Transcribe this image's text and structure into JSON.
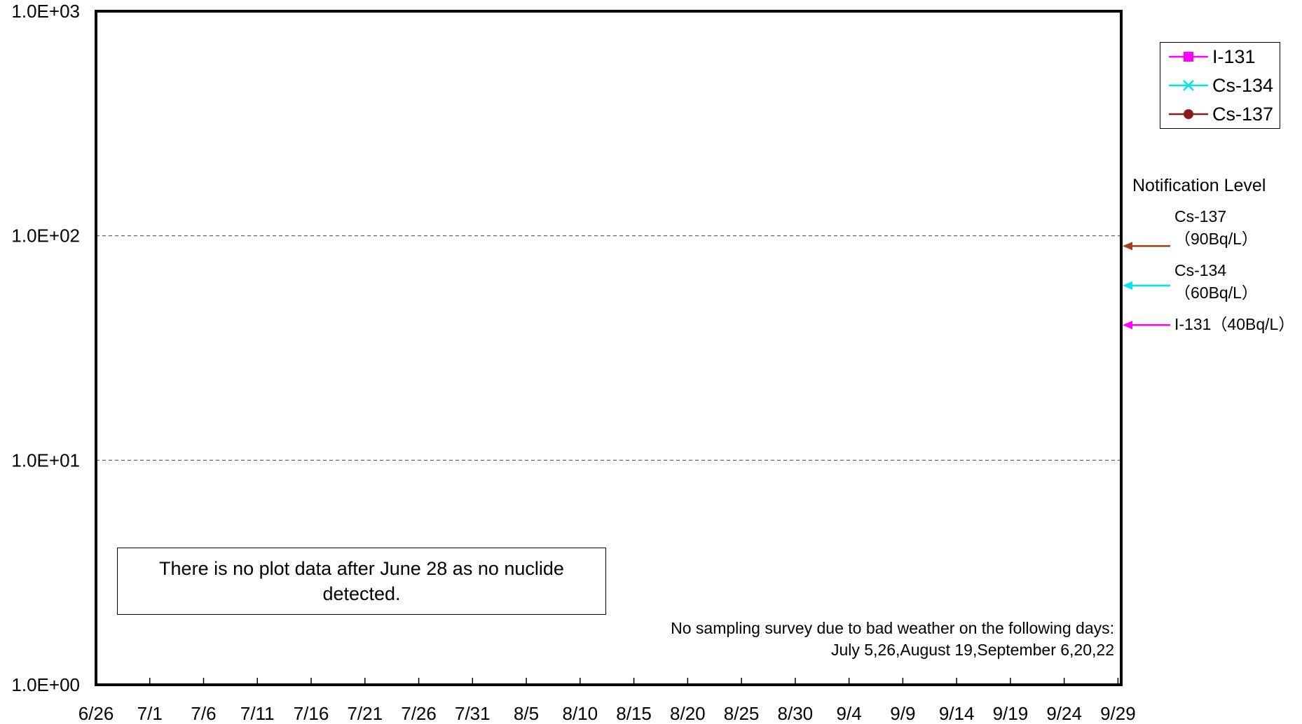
{
  "chart_data": {
    "type": "line",
    "y_scale": "log",
    "ylim": [
      1,
      1000
    ],
    "y_ticks": [
      "1.0E+00",
      "1.0E+01",
      "1.0E+02",
      "1.0E+03"
    ],
    "x_ticks": [
      "6/26",
      "7/1",
      "7/6",
      "7/11",
      "7/16",
      "7/21",
      "7/26",
      "7/31",
      "8/5",
      "8/10",
      "8/15",
      "8/20",
      "8/25",
      "8/30",
      "9/4",
      "9/9",
      "9/14",
      "9/19",
      "9/24",
      "9/29"
    ],
    "gridlines": "dashed horizontal at decades",
    "legend_position": "right",
    "series": [
      {
        "name": "I-131",
        "color": "#ff00ff",
        "marker": "square",
        "values": []
      },
      {
        "name": "Cs-134",
        "color": "#00e5ee",
        "marker": "x",
        "values": []
      },
      {
        "name": "Cs-137",
        "color": "#8b1a1a",
        "marker": "circle",
        "values": []
      }
    ],
    "notification_levels": {
      "title": "Notification Level",
      "items": [
        {
          "label_line1": "Cs-137",
          "label_line2": "（90Bq/L）",
          "value": 90,
          "color": "#a0401a"
        },
        {
          "label_line1": "Cs-134",
          "label_line2": "（60Bq/L）",
          "value": 60,
          "color": "#00e5ee"
        },
        {
          "label_line1": "I-131（40Bq/L）",
          "label_line2": "",
          "value": 40,
          "color": "#ff00ff"
        }
      ]
    },
    "annotations": {
      "no_data_note": "There is no plot data after June 28 as no nuclide detected.",
      "weather_line1": "No sampling survey due to bad weather on the following days:",
      "weather_line2": "July 5,26,August 19,September 6,20,22"
    }
  }
}
